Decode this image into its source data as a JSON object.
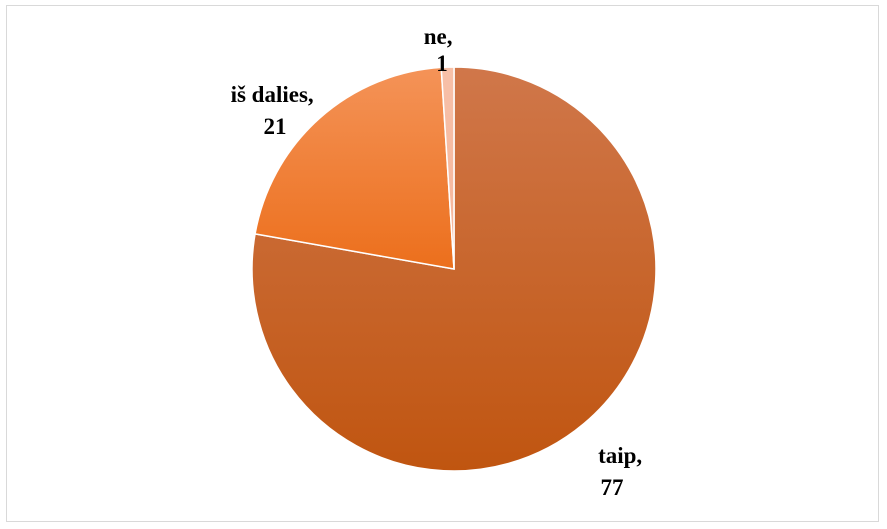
{
  "chart_data": {
    "type": "pie",
    "title": "",
    "legend": "none",
    "start_angle_deg": 0,
    "direction": "clockwise",
    "slices": [
      {
        "label": "taip",
        "value": 77,
        "color_top": "#d0774a",
        "color_bottom": "#c05510"
      },
      {
        "label": "iš dalies",
        "value": 21,
        "color_top": "#f49358",
        "color_bottom": "#ec6f1c"
      },
      {
        "label": "ne",
        "value": 1,
        "color_top": "#f7c0a8",
        "color_bottom": "#f5b59a"
      }
    ],
    "data_labels": [
      {
        "name": "taip",
        "value": "77"
      },
      {
        "name": "iš dalies",
        "value": "21"
      },
      {
        "name": "ne",
        "value": "1"
      }
    ]
  }
}
